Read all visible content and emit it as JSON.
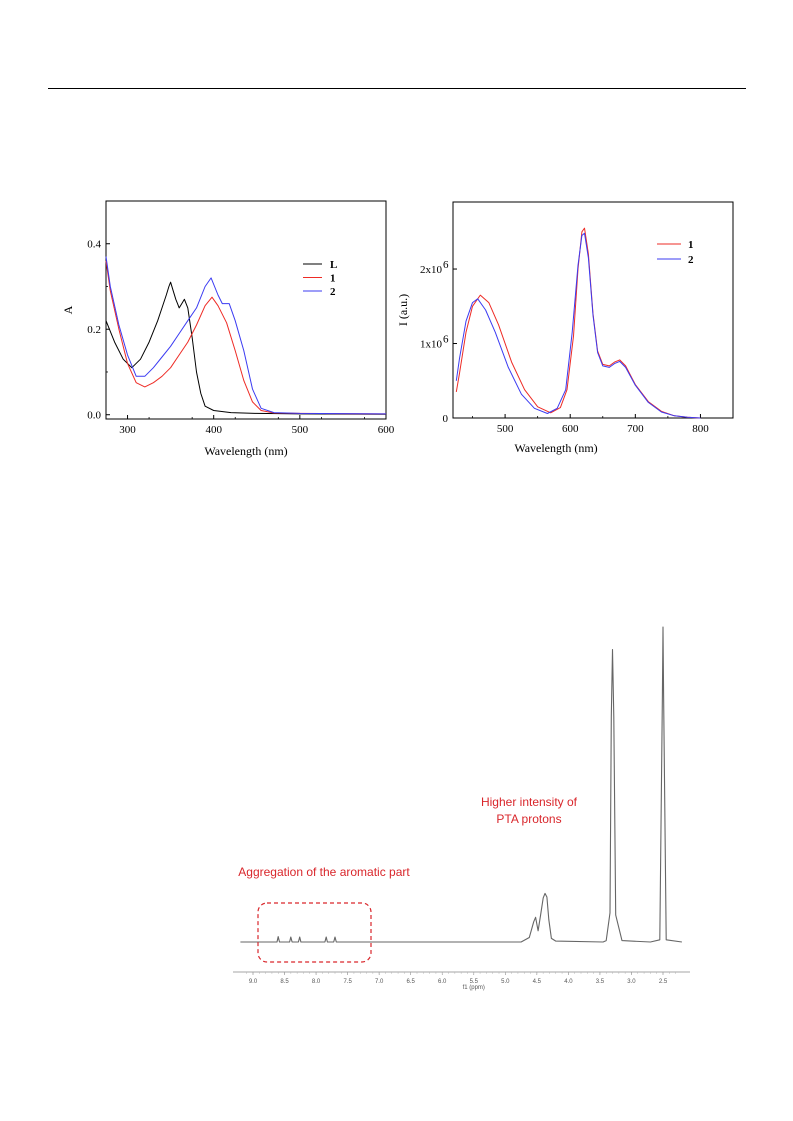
{
  "chart_data": [
    {
      "id": "absorption",
      "type": "line",
      "xlabel": "Wavelength (nm)",
      "ylabel": "A",
      "xlim": [
        275,
        600
      ],
      "ylim": [
        -0.01,
        0.5
      ],
      "xticks": [
        "300",
        "400",
        "500",
        "600"
      ],
      "yticks": [
        "0.0",
        "0.2",
        "0.4"
      ],
      "legend_position": "top-right",
      "series": [
        {
          "name": "L",
          "color": "#000000",
          "x": [
            275,
            285,
            295,
            305,
            315,
            325,
            335,
            340,
            345,
            348,
            350,
            353,
            356,
            358,
            360,
            363,
            366,
            370,
            375,
            380,
            385,
            390,
            400,
            420,
            450,
            500,
            600
          ],
          "y": [
            0.22,
            0.17,
            0.13,
            0.11,
            0.13,
            0.17,
            0.22,
            0.25,
            0.28,
            0.3,
            0.31,
            0.29,
            0.27,
            0.26,
            0.25,
            0.26,
            0.27,
            0.25,
            0.18,
            0.1,
            0.05,
            0.02,
            0.01,
            0.005,
            0.003,
            0.002,
            0.001
          ]
        },
        {
          "name": "1",
          "color": "#ee2b25",
          "x": [
            275,
            280,
            290,
            300,
            310,
            320,
            330,
            340,
            350,
            360,
            370,
            380,
            390,
            398,
            405,
            415,
            425,
            435,
            445,
            455,
            470,
            500,
            600
          ],
          "y": [
            0.36,
            0.29,
            0.2,
            0.12,
            0.075,
            0.065,
            0.075,
            0.09,
            0.11,
            0.14,
            0.17,
            0.21,
            0.255,
            0.275,
            0.255,
            0.215,
            0.15,
            0.08,
            0.03,
            0.01,
            0.004,
            0.003,
            0.002
          ]
        },
        {
          "name": "2",
          "color": "#3b3bf2",
          "x": [
            275,
            280,
            290,
            300,
            310,
            320,
            330,
            340,
            350,
            360,
            370,
            380,
            390,
            397,
            405,
            410,
            418,
            425,
            435,
            445,
            455,
            470,
            500,
            600
          ],
          "y": [
            0.37,
            0.3,
            0.21,
            0.14,
            0.09,
            0.09,
            0.11,
            0.135,
            0.16,
            0.19,
            0.22,
            0.25,
            0.3,
            0.32,
            0.28,
            0.26,
            0.26,
            0.22,
            0.15,
            0.06,
            0.015,
            0.005,
            0.003,
            0.002
          ]
        }
      ]
    },
    {
      "id": "emission",
      "type": "line",
      "xlabel": "Wavelength (nm)",
      "ylabel": "I (a.u.)",
      "xlim": [
        420,
        850
      ],
      "ylim": [
        0,
        29000000
      ],
      "xticks": [
        "500",
        "600",
        "700",
        "800"
      ],
      "yticks": [
        "0",
        "1x10",
        "2x10"
      ],
      "ytick_exponent": "6",
      "legend_position": "top-right",
      "series": [
        {
          "name": "1",
          "color": "#ee2b25",
          "x": [
            425,
            430,
            440,
            450,
            462,
            475,
            490,
            510,
            530,
            550,
            570,
            585,
            595,
            605,
            612,
            618,
            622,
            628,
            635,
            642,
            650,
            660,
            668,
            676,
            685,
            700,
            720,
            740,
            760,
            780,
            800
          ],
          "y": [
            3500000,
            6000000,
            11500000,
            15000000,
            16500000,
            15500000,
            12500000,
            7500000,
            3800000,
            1500000,
            700000,
            1400000,
            3800000,
            11000000,
            20000000,
            25000000,
            25500000,
            22000000,
            14000000,
            9000000,
            7200000,
            7000000,
            7500000,
            7800000,
            7000000,
            4500000,
            2200000,
            900000,
            300000,
            100000,
            0
          ]
        },
        {
          "name": "2",
          "color": "#3b3bf2",
          "x": [
            425,
            430,
            440,
            450,
            458,
            470,
            485,
            505,
            525,
            545,
            565,
            580,
            593,
            603,
            612,
            618,
            622,
            628,
            635,
            642,
            650,
            660,
            668,
            676,
            685,
            700,
            720,
            740,
            760,
            780,
            800
          ],
          "y": [
            5000000,
            8000000,
            13000000,
            15500000,
            16000000,
            14500000,
            11500000,
            6800000,
            3200000,
            1300000,
            600000,
            1300000,
            3800000,
            11500000,
            20500000,
            24500000,
            24800000,
            21500000,
            13800000,
            8800000,
            7000000,
            6800000,
            7300000,
            7600000,
            6800000,
            4400000,
            2100000,
            800000,
            300000,
            100000,
            0
          ]
        }
      ]
    },
    {
      "id": "nmr",
      "type": "line",
      "xlabel": "f1 (ppm)",
      "ylabel": "",
      "xlim": [
        9.2,
        2.2
      ],
      "xticks": [
        "9.0",
        "8.5",
        "8.0",
        "7.5",
        "7.0",
        "6.5",
        "6.0",
        "5.5",
        "5.0",
        "4.5",
        "4.0",
        "3.5",
        "3.0",
        "2.5"
      ],
      "annotations": [
        "Aggregation of the aromatic part",
        "Higher intensity of",
        "PTA protons"
      ],
      "series": [
        {
          "name": "",
          "color": "#666666",
          "x": [
            9.2,
            8.62,
            8.6,
            8.58,
            8.42,
            8.4,
            8.38,
            8.28,
            8.26,
            8.24,
            7.86,
            7.84,
            7.82,
            7.72,
            7.7,
            7.68,
            4.75,
            4.62,
            4.55,
            4.52,
            4.48,
            4.44,
            4.4,
            4.37,
            4.34,
            4.31,
            4.27,
            4.2,
            3.45,
            3.4,
            3.34,
            3.32,
            3.3,
            3.28,
            3.25,
            3.15,
            2.7,
            2.55,
            2.51,
            2.5,
            2.49,
            2.45,
            2.2
          ],
          "y": [
            0,
            0,
            1.2,
            0,
            0,
            1.1,
            0,
            0,
            1.1,
            0,
            0,
            1.1,
            0,
            0,
            1.1,
            0,
            0,
            1.0,
            4.5,
            5.5,
            2.5,
            6.0,
            9.8,
            10.8,
            10.0,
            5.0,
            0.8,
            0.2,
            0,
            0.3,
            6.5,
            50,
            65,
            50,
            6.0,
            0.3,
            0,
            0.5,
            55,
            70,
            55,
            0.5,
            0
          ]
        }
      ]
    }
  ]
}
